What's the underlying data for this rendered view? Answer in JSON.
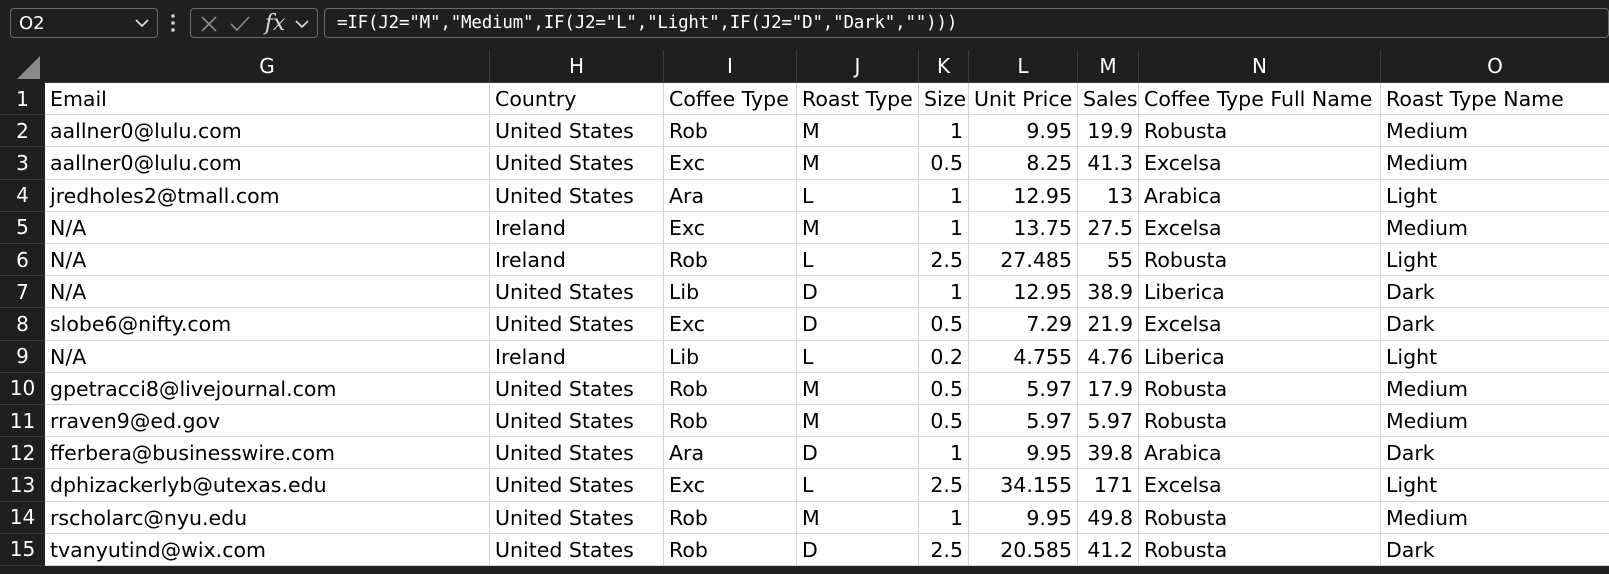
{
  "formula_bar": {
    "name_box": "O2",
    "formula": "=IF(J2=\"M\",\"Medium\",IF(J2=\"L\",\"Light\",IF(J2=\"D\",\"Dark\",\"\")))",
    "fx_label": "fx",
    "icons": {
      "name_box_dropdown": "chevron-down-icon",
      "more": "vertical-dots-icon",
      "cancel": "x-icon",
      "confirm": "check-icon",
      "insert_function": "fx-icon",
      "fx_dropdown": "chevron-down-icon"
    }
  },
  "sheet": {
    "columns": [
      "G",
      "H",
      "I",
      "J",
      "K",
      "L",
      "M",
      "N",
      "O"
    ],
    "numeric_columns": [
      "K",
      "L",
      "M"
    ],
    "row_numbers": [
      "1",
      "2",
      "3",
      "4",
      "5",
      "6",
      "7",
      "8",
      "9",
      "10",
      "11",
      "12",
      "13",
      "14",
      "15"
    ],
    "rows": [
      [
        "Email",
        "Country",
        "Coffee Type",
        "Roast Type",
        "Size",
        "Unit Price",
        "Sales",
        "Coffee Type Full Name",
        "Roast Type Name"
      ],
      [
        "aallner0@lulu.com",
        "United States",
        "Rob",
        "M",
        "1",
        "9.95",
        "19.9",
        "Robusta",
        "Medium"
      ],
      [
        "aallner0@lulu.com",
        "United States",
        "Exc",
        "M",
        "0.5",
        "8.25",
        "41.3",
        "Excelsa",
        "Medium"
      ],
      [
        "jredholes2@tmall.com",
        "United States",
        "Ara",
        "L",
        "1",
        "12.95",
        "13",
        "Arabica",
        "Light"
      ],
      [
        "N/A",
        "Ireland",
        "Exc",
        "M",
        "1",
        "13.75",
        "27.5",
        "Excelsa",
        "Medium"
      ],
      [
        "N/A",
        "Ireland",
        "Rob",
        "L",
        "2.5",
        "27.485",
        "55",
        "Robusta",
        "Light"
      ],
      [
        "N/A",
        "United States",
        "Lib",
        "D",
        "1",
        "12.95",
        "38.9",
        "Liberica",
        "Dark"
      ],
      [
        "slobe6@nifty.com",
        "United States",
        "Exc",
        "D",
        "0.5",
        "7.29",
        "21.9",
        "Excelsa",
        "Dark"
      ],
      [
        "N/A",
        "Ireland",
        "Lib",
        "L",
        "0.2",
        "4.755",
        "4.76",
        "Liberica",
        "Light"
      ],
      [
        "gpetracci8@livejournal.com",
        "United States",
        "Rob",
        "M",
        "0.5",
        "5.97",
        "17.9",
        "Robusta",
        "Medium"
      ],
      [
        "rraven9@ed.gov",
        "United States",
        "Rob",
        "M",
        "0.5",
        "5.97",
        "5.97",
        "Robusta",
        "Medium"
      ],
      [
        "fferbera@businesswire.com",
        "United States",
        "Ara",
        "D",
        "1",
        "9.95",
        "39.8",
        "Arabica",
        "Dark"
      ],
      [
        "dphizackerlyb@utexas.edu",
        "United States",
        "Exc",
        "L",
        "2.5",
        "34.155",
        "171",
        "Excelsa",
        "Light"
      ],
      [
        "rscholarc@nyu.edu",
        "United States",
        "Rob",
        "M",
        "1",
        "9.95",
        "49.8",
        "Robusta",
        "Medium"
      ],
      [
        "tvanyutind@wix.com",
        "United States",
        "Rob",
        "D",
        "2.5",
        "20.585",
        "41.2",
        "Robusta",
        "Dark"
      ]
    ]
  }
}
